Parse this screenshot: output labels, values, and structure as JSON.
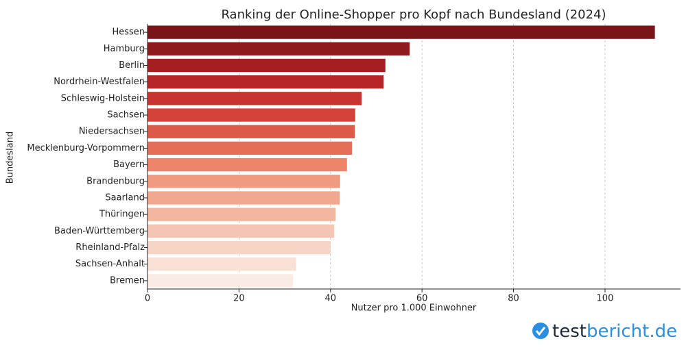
{
  "chart_data": {
    "type": "barh",
    "title": "Ranking der Online-Shopper pro Kopf nach Bundesland (2024)",
    "x_label": "Nutzer pro 1.000 Einwohner",
    "y_label": "Bundesland",
    "categories": [
      "Hessen",
      "Hamburg",
      "Berlin",
      "Nordrhein-Westfalen",
      "Schleswig-Holstein",
      "Sachsen",
      "Niedersachsen",
      "Mecklenburg-Vorpommern",
      "Bayern",
      "Brandenburg",
      "Saarland",
      "Thüringen",
      "Baden-Württemberg",
      "Rheinland-Pfalz",
      "Sachsen-Anhalt",
      "Bremen"
    ],
    "values": [
      110.9,
      57.3,
      52.0,
      51.6,
      46.8,
      45.4,
      45.3,
      44.7,
      43.6,
      42.1,
      42.0,
      41.1,
      40.8,
      40.0,
      32.5,
      31.8
    ],
    "colors": [
      "#781418",
      "#8e1a1e",
      "#a51e22",
      "#b72428",
      "#c7332f",
      "#d4433a",
      "#dd5a48",
      "#e56e58",
      "#ec8469",
      "#f09a7f",
      "#f2a88f",
      "#f3b7a1",
      "#f5c5b3",
      "#f6d4c6",
      "#f8e0d6",
      "#faebe4"
    ],
    "xlim": [
      0,
      116.5
    ],
    "xticks": [
      0,
      20,
      40,
      60,
      80,
      100
    ],
    "grid": true
  },
  "watermark": {
    "part1": "test",
    "part2": "bericht.de"
  }
}
